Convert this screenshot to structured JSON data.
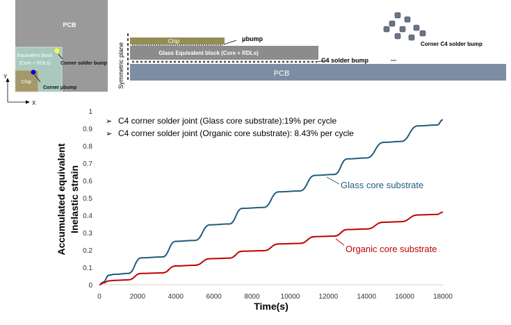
{
  "schematic": {
    "top_view": {
      "pcb_label": "PCB",
      "equiv_block_label_1": "Equivalent block",
      "equiv_block_label_2": "(Core + RDLs)",
      "chip_label": "Chip",
      "corner_solder_bump_label": "Corner solder bump",
      "corner_ubump_label": "Corner μbump",
      "axis_y": "Y",
      "axis_x": "X"
    },
    "cross_section": {
      "symmetric_plane_label": "Symmetric plane",
      "chip_label": "Chip",
      "ubump_label": "μbump",
      "glass_block_label": "Glass Equivalent block (Core + RDLs)",
      "c4_label": "C4 solder bump",
      "pcb_label": "PCB",
      "corner_c4_label": "Corner C4 solder bump"
    },
    "colors": {
      "top_pcb": "#9a9a9a",
      "top_equiv": "#a9c9bd",
      "top_chip": "#a4996a",
      "section_chip": "#968d55",
      "section_glass": "#8c8c8c",
      "section_pcb": "#7d8da3",
      "yellow_dot": "#ffff33",
      "blue_dot": "#0000dd"
    }
  },
  "chart_data": {
    "type": "line",
    "xlabel": "Time(s)",
    "ylabel_lines": [
      "Accumulated equivalent",
      "Inelastic strain"
    ],
    "xlim": [
      0,
      18000
    ],
    "ylim": [
      0,
      1
    ],
    "xticks": [
      0,
      2000,
      4000,
      6000,
      8000,
      10000,
      12000,
      14000,
      16000,
      18000
    ],
    "yticks": [
      0,
      0.1,
      0.2,
      0.3,
      0.4,
      0.5,
      0.6,
      0.7,
      0.8,
      0.9,
      1
    ],
    "annotations": [
      "C4 corner solder joint (Glass core substrate):19% per cycle",
      "C4 corner solder joint (Organic core substrate): 8.43% per cycle"
    ],
    "series": [
      {
        "name": "Glass core substrate",
        "color": "#1f5c7a",
        "x": [
          0,
          200,
          500,
          800,
          1500,
          2200,
          3300,
          4000,
          5000,
          5800,
          6800,
          7500,
          8600,
          9400,
          10500,
          11300,
          12300,
          13000,
          14000,
          14900,
          15800,
          16700,
          17700,
          18000
        ],
        "y": [
          0,
          0.015,
          0.055,
          0.06,
          0.065,
          0.155,
          0.16,
          0.25,
          0.255,
          0.345,
          0.35,
          0.44,
          0.445,
          0.535,
          0.54,
          0.63,
          0.635,
          0.725,
          0.73,
          0.82,
          0.825,
          0.915,
          0.92,
          0.95
        ]
      },
      {
        "name": "Organic core substrate",
        "color": "#c00000",
        "x": [
          0,
          200,
          500,
          800,
          1500,
          2200,
          3300,
          4000,
          5000,
          5800,
          6800,
          7500,
          8600,
          9400,
          10500,
          11300,
          12300,
          13000,
          14000,
          14900,
          15800,
          16700,
          17700,
          18000
        ],
        "y": [
          0,
          0.01,
          0.022,
          0.025,
          0.028,
          0.065,
          0.068,
          0.108,
          0.112,
          0.15,
          0.153,
          0.193,
          0.196,
          0.235,
          0.238,
          0.277,
          0.28,
          0.318,
          0.321,
          0.36,
          0.363,
          0.402,
          0.405,
          0.418
        ]
      }
    ],
    "grid": false,
    "legend": "inline labels"
  }
}
